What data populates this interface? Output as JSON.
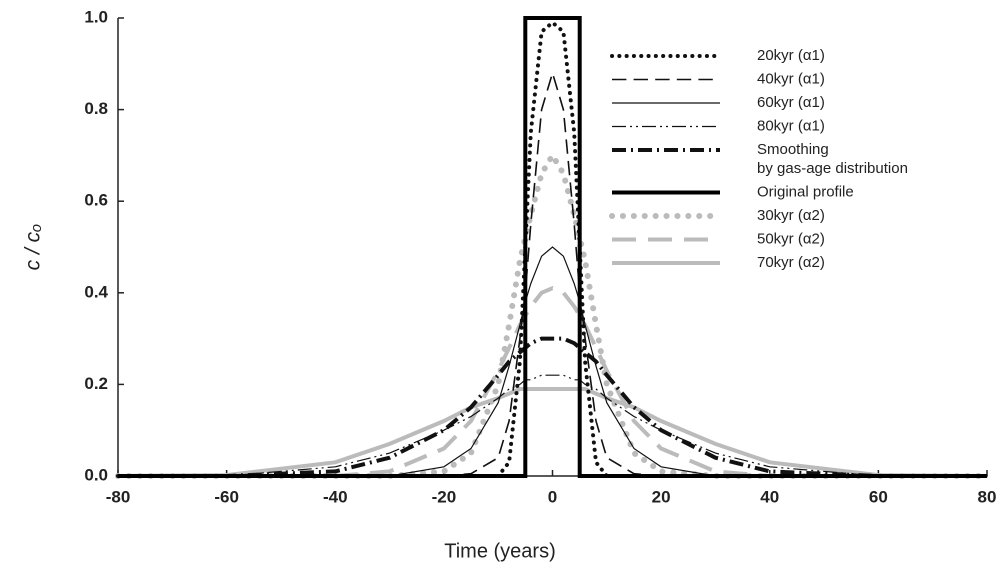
{
  "chart_data": {
    "type": "line",
    "xlabel": "Time (years)",
    "ylabel": "c / cₒ",
    "x": [
      -80,
      -60,
      -40,
      -30,
      -20,
      -15,
      -10,
      -8,
      -6,
      -5,
      -4,
      -2,
      0,
      2,
      4,
      5,
      6,
      8,
      10,
      15,
      20,
      30,
      40,
      60,
      80
    ],
    "xlim": [
      -80,
      80
    ],
    "xticks": [
      -80,
      -60,
      -40,
      -20,
      0,
      20,
      40,
      60,
      80
    ],
    "ylim": [
      0,
      1
    ],
    "yticks": [
      {
        "value": 0,
        "label": "0.0"
      },
      {
        "value": 0.2,
        "label": "0.2"
      },
      {
        "value": 0.4,
        "label": "0.4"
      },
      {
        "value": 0.6,
        "label": "0.6"
      },
      {
        "value": 0.8,
        "label": "0.8"
      },
      {
        "value": 1,
        "label": "1.0"
      }
    ],
    "series": [
      {
        "name": "20kyr  (α1)",
        "color": "#111111",
        "dash": "dot",
        "weight": "thick",
        "values": [
          0,
          0,
          0,
          0,
          0,
          0,
          0,
          0.03,
          0.25,
          0.5,
          0.75,
          0.97,
          0.99,
          0.97,
          0.75,
          0.5,
          0.25,
          0.03,
          0,
          0,
          0,
          0,
          0,
          0,
          0
        ]
      },
      {
        "name": "40kyr  (α1)",
        "color": "#111111",
        "dash": "dash",
        "weight": "medium",
        "values": [
          0,
          0,
          0,
          0,
          0,
          0.005,
          0.04,
          0.12,
          0.3,
          0.4,
          0.55,
          0.8,
          0.88,
          0.8,
          0.55,
          0.4,
          0.3,
          0.12,
          0.04,
          0.005,
          0,
          0,
          0,
          0,
          0
        ]
      },
      {
        "name": "60kyr  (α1)",
        "color": "#111111",
        "dash": "solid",
        "weight": "thin",
        "values": [
          0,
          0,
          0,
          0,
          0.02,
          0.06,
          0.16,
          0.24,
          0.33,
          0.38,
          0.42,
          0.48,
          0.5,
          0.48,
          0.42,
          0.38,
          0.33,
          0.24,
          0.16,
          0.06,
          0.02,
          0,
          0,
          0,
          0
        ]
      },
      {
        "name": "80kyr  (α1)",
        "color": "#111111",
        "dash": "dashdotdot",
        "weight": "thin",
        "values": [
          0,
          0,
          0.02,
          0.05,
          0.1,
          0.13,
          0.17,
          0.19,
          0.2,
          0.21,
          0.21,
          0.22,
          0.22,
          0.22,
          0.21,
          0.21,
          0.2,
          0.19,
          0.17,
          0.13,
          0.1,
          0.05,
          0.02,
          0,
          0
        ]
      },
      {
        "name": "Smoothing\nby gas-age distribution",
        "color": "#111111",
        "dash": "dashdot",
        "weight": "thick",
        "values": [
          0,
          0,
          0.01,
          0.04,
          0.1,
          0.15,
          0.22,
          0.25,
          0.27,
          0.28,
          0.29,
          0.3,
          0.3,
          0.3,
          0.29,
          0.28,
          0.27,
          0.25,
          0.22,
          0.15,
          0.1,
          0.04,
          0.01,
          0,
          0
        ]
      },
      {
        "name": "Original profile",
        "color": "#000000",
        "dash": "solid",
        "weight": "thick",
        "x": [
          -80,
          -5,
          -5,
          5,
          5,
          80
        ],
        "values": [
          0,
          0,
          1,
          1,
          0,
          0
        ]
      },
      {
        "name": "30kyr   (α2)",
        "color": "#bbbbbb",
        "dash": "dot",
        "weight": "heavy",
        "values": [
          0,
          0,
          0,
          0,
          0.01,
          0.05,
          0.2,
          0.33,
          0.47,
          0.52,
          0.57,
          0.66,
          0.7,
          0.66,
          0.57,
          0.52,
          0.47,
          0.33,
          0.2,
          0.05,
          0.01,
          0,
          0,
          0,
          0
        ]
      },
      {
        "name": "50kyr   (α2)",
        "color": "#bbbbbb",
        "dash": "dash",
        "weight": "thick",
        "values": [
          0,
          0,
          0,
          0.01,
          0.06,
          0.12,
          0.23,
          0.28,
          0.33,
          0.35,
          0.37,
          0.4,
          0.41,
          0.4,
          0.37,
          0.35,
          0.33,
          0.28,
          0.23,
          0.12,
          0.06,
          0.01,
          0,
          0,
          0
        ]
      },
      {
        "name": "70kyr   (α2)",
        "color": "#bbbbbb",
        "dash": "solid",
        "weight": "thick",
        "values": [
          0,
          0.002,
          0.03,
          0.07,
          0.12,
          0.15,
          0.17,
          0.18,
          0.19,
          0.19,
          0.19,
          0.19,
          0.19,
          0.19,
          0.19,
          0.19,
          0.19,
          0.18,
          0.17,
          0.15,
          0.12,
          0.07,
          0.03,
          0.002,
          0
        ]
      }
    ]
  }
}
